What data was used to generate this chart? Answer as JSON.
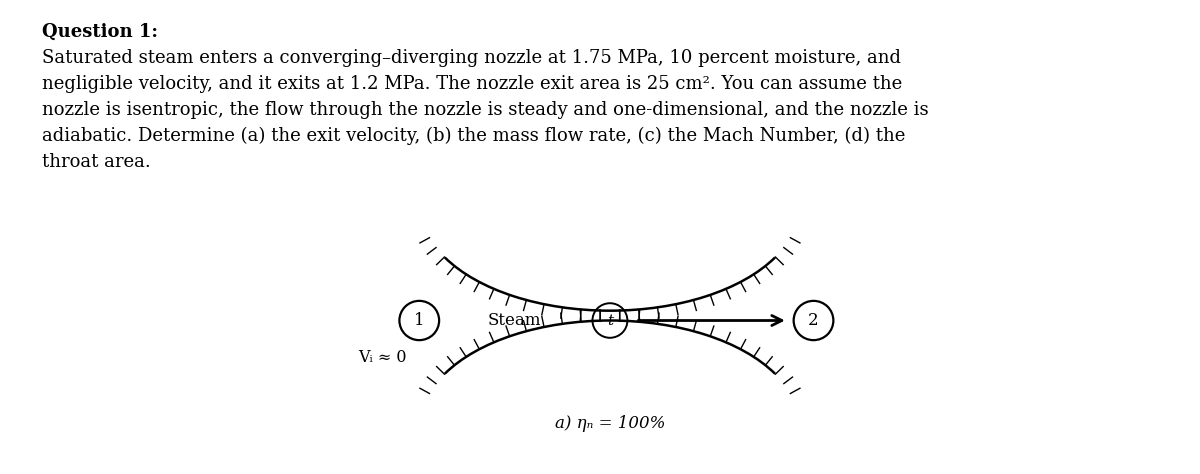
{
  "title": "Question 1:",
  "body_text": "Saturated steam enters a converging–diverging nozzle at 1.75 MPa, 10 percent moisture, and\nnegligible velocity, and it exits at 1.2 MPa. The nozzle exit area is 25 cm². You can assume the\nnozzle is isentropic, the flow through the nozzle is steady and one-dimensional, and the nozzle is\nadiabatic. Determine (a) the exit velocity, (b) the mass flow rate, (c) the Mach Number, (d) the\nthroat area.",
  "label_1": "1",
  "label_t": "t",
  "label_2": "2",
  "steam_label": "Steam",
  "v_label": "Vᵢ ≈ 0",
  "eta_label": "a) ηₙ = 100%",
  "bg_color": "#ffffff",
  "text_color": "#000000",
  "fig_width": 12.0,
  "fig_height": 4.74,
  "title_fontsize": 13,
  "body_fontsize": 13,
  "diagram_fontsize": 12
}
